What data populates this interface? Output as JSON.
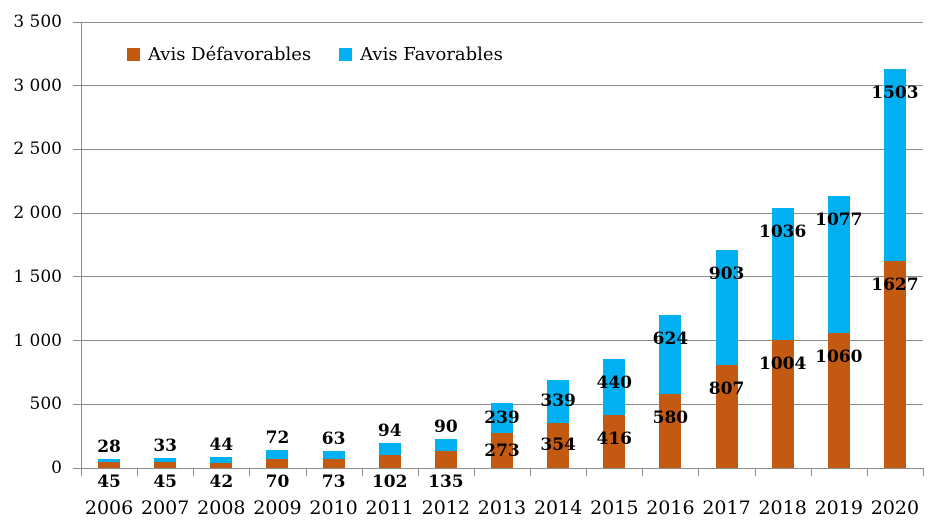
{
  "legend": [
    {
      "label": "Avis Défavorables",
      "color": "#C45911"
    },
    {
      "label": "Avis Favorables",
      "color": "#00B0F0"
    }
  ],
  "chart_data": {
    "type": "bar",
    "stacked": true,
    "title": "",
    "xlabel": "",
    "ylabel": "",
    "categories": [
      "2006",
      "2007",
      "2008",
      "2009",
      "2010",
      "2011",
      "2012",
      "2013",
      "2014",
      "2015",
      "2016",
      "2017",
      "2018",
      "2019",
      "2020"
    ],
    "series": [
      {
        "name": "Avis Défavorables",
        "color": "#C45911",
        "values": [
          45,
          45,
          42,
          70,
          73,
          102,
          135,
          273,
          354,
          416,
          580,
          807,
          1004,
          1060,
          1627
        ]
      },
      {
        "name": "Avis Favorables",
        "color": "#00B0F0",
        "values": [
          28,
          33,
          44,
          72,
          63,
          94,
          90,
          239,
          339,
          440,
          624,
          903,
          1036,
          1077,
          1503
        ]
      }
    ],
    "ylim": [
      0,
      3500
    ],
    "ytick_step": 500,
    "ytick_labels": [
      "0",
      "500",
      "1 000",
      "1 500",
      "2 000",
      "2 500",
      "3 000",
      "3 500"
    ],
    "grid": true,
    "grid_color": "#8C8C8C",
    "axis_color": "#8C8C8C",
    "label_color": "#000000",
    "legend_position": "top"
  }
}
